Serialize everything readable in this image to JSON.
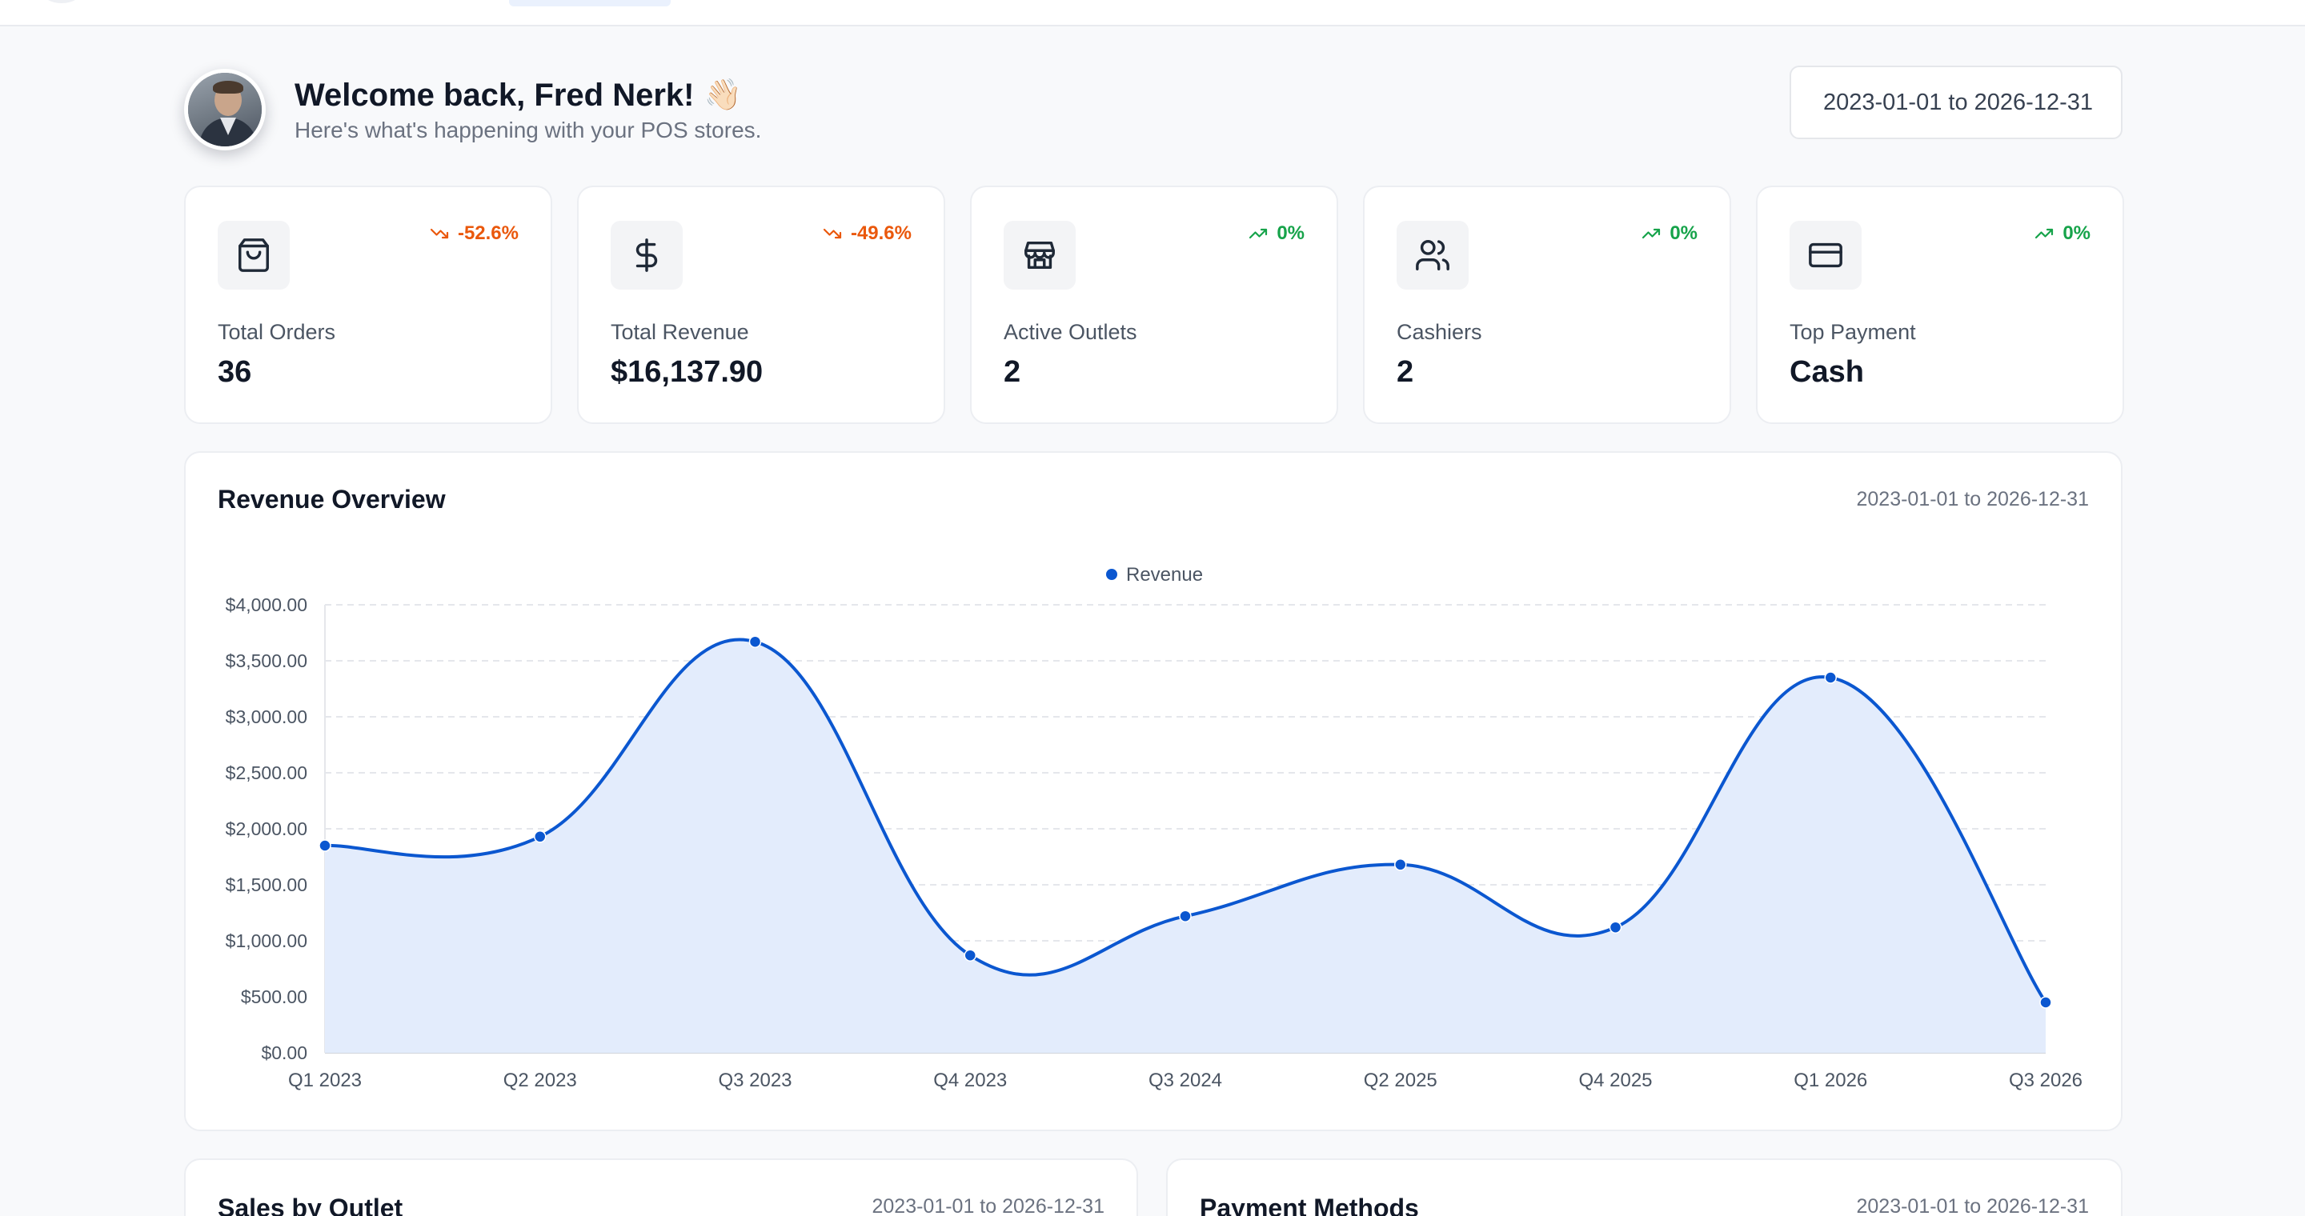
{
  "header": {
    "title": "Welcome back, Fred Nerk!",
    "wave_icon": "👋🏻",
    "subtitle": "Here's what's happening with your POS stores.",
    "date_range": "2023-01-01 to 2026-12-31"
  },
  "stats": [
    {
      "label": "Total Orders",
      "value": "36",
      "change": "-52.6%",
      "trend": "down",
      "icon": "shopping-bag-icon"
    },
    {
      "label": "Total Revenue",
      "value": "$16,137.90",
      "change": "-49.6%",
      "trend": "down",
      "icon": "dollar-icon"
    },
    {
      "label": "Active Outlets",
      "value": "2",
      "change": "0%",
      "trend": "up",
      "icon": "store-icon"
    },
    {
      "label": "Cashiers",
      "value": "2",
      "change": "0%",
      "trend": "up",
      "icon": "users-icon"
    },
    {
      "label": "Top Payment",
      "value": "Cash",
      "change": "0%",
      "trend": "up",
      "icon": "credit-card-icon"
    }
  ],
  "revenue_card": {
    "title": "Revenue Overview",
    "date_range": "2023-01-01 to 2026-12-31"
  },
  "sales_card": {
    "title": "Sales by Outlet",
    "date_range": "2023-01-01 to 2026-12-31"
  },
  "payments_card": {
    "title": "Payment Methods",
    "date_range": "2023-01-01 to 2026-12-31"
  },
  "colors": {
    "accent": "#0b57d0",
    "fill": "#e3ecfc",
    "down": "#ea580c",
    "up": "#16a34a"
  },
  "chart_data": {
    "type": "area",
    "legend": "top-center",
    "grid": true,
    "categories": [
      "Q1 2023",
      "Q2 2023",
      "Q3 2023",
      "Q4 2023",
      "Q3 2024",
      "Q2 2025",
      "Q4 2025",
      "Q1 2026",
      "Q3 2026"
    ],
    "series": [
      {
        "name": "Revenue",
        "values": [
          1850,
          1930,
          3670,
          870,
          1220,
          1680,
          1120,
          3350,
          450
        ]
      }
    ],
    "ylim": [
      0,
      4000
    ],
    "yticks": [
      "$0.00",
      "$500.00",
      "$1,000.00",
      "$1,500.00",
      "$2,000.00",
      "$2,500.00",
      "$3,000.00",
      "$3,500.00",
      "$4,000.00"
    ]
  }
}
